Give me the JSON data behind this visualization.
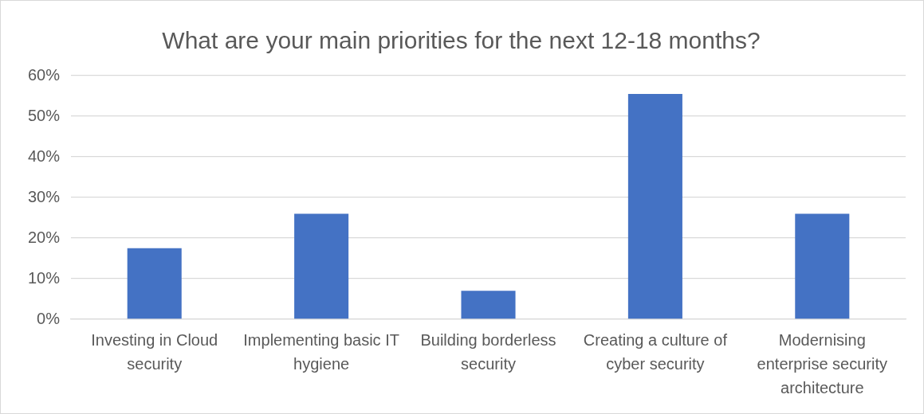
{
  "chart_data": {
    "type": "bar",
    "title": "What are your main priorities for the next 12-18 months?",
    "categories": [
      "Investing in Cloud security",
      "Implementing basic IT hygiene",
      "Building borderless security",
      "Creating a culture of cyber security",
      "Modernising enterprise security architecture"
    ],
    "values": [
      17.5,
      26,
      7,
      55.5,
      26
    ],
    "color": "#4472c4",
    "ylim": [
      0,
      60
    ],
    "yticks": [
      {
        "value": 0,
        "label": "0%"
      },
      {
        "value": 10,
        "label": "10%"
      },
      {
        "value": 20,
        "label": "20%"
      },
      {
        "value": 30,
        "label": "30%"
      },
      {
        "value": 40,
        "label": "40%"
      },
      {
        "value": 50,
        "label": "50%"
      },
      {
        "value": 60,
        "label": "60%"
      }
    ],
    "grid": "y",
    "legend": false
  }
}
